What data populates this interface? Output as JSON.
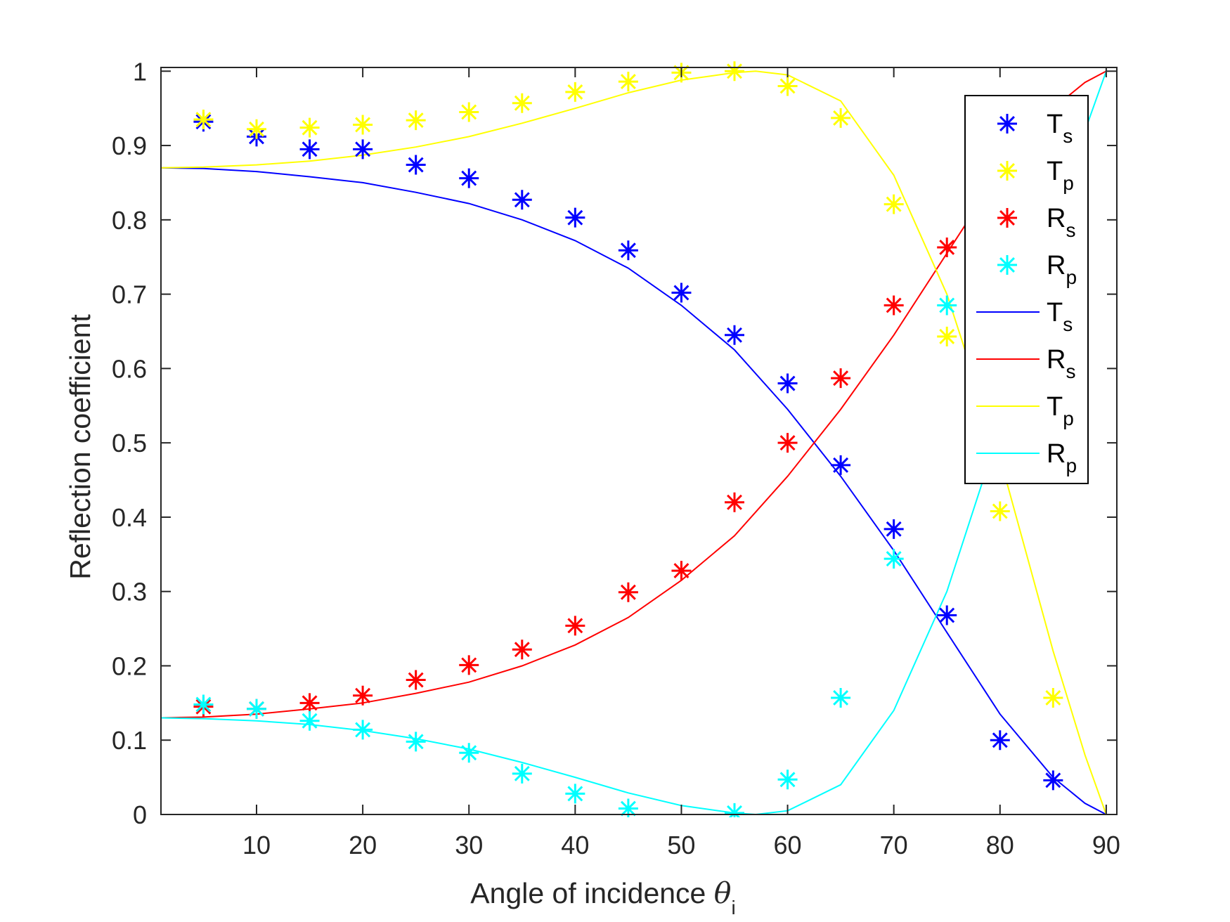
{
  "chart_data": {
    "type": "scatter",
    "xlabel": {
      "text": "Angle of incidence ",
      "symbol": "θ",
      "sub": "i"
    },
    "ylabel": "Reflection coefficient",
    "xlim": [
      1,
      91
    ],
    "ylim": [
      0,
      1.005
    ],
    "xticks": [
      10,
      20,
      30,
      40,
      50,
      60,
      70,
      80,
      90
    ],
    "yticks": [
      0,
      0.1,
      0.2,
      0.3,
      0.4,
      0.5,
      0.6,
      0.7,
      0.8,
      0.9,
      1
    ],
    "grid": false,
    "legend_position": "top-right",
    "colors": {
      "Ts": "#0000ff",
      "Tp": "#ffff00",
      "Rs": "#ff0000",
      "Rp": "#00ffff",
      "axes": "#262626"
    },
    "markers": [
      {
        "key": "Ts",
        "base": "T",
        "sub": "s",
        "x": [
          5,
          10,
          15,
          20,
          25,
          30,
          35,
          40,
          45,
          50,
          55,
          60,
          65,
          70,
          75,
          80,
          85
        ],
        "y": [
          0.932,
          0.912,
          0.895,
          0.895,
          0.874,
          0.856,
          0.827,
          0.803,
          0.759,
          0.702,
          0.645,
          0.58,
          0.47,
          0.384,
          0.268,
          0.1,
          0.046
        ]
      },
      {
        "key": "Tp",
        "base": "T",
        "sub": "p",
        "x": [
          5,
          10,
          15,
          20,
          25,
          30,
          35,
          40,
          45,
          50,
          55,
          60,
          65,
          70,
          75,
          80,
          85
        ],
        "y": [
          0.935,
          0.922,
          0.924,
          0.928,
          0.934,
          0.945,
          0.957,
          0.972,
          0.986,
          0.998,
          1.0,
          0.98,
          0.937,
          0.821,
          0.643,
          0.408,
          0.157
        ]
      },
      {
        "key": "Rs",
        "base": "R",
        "sub": "s",
        "x": [
          5,
          10,
          15,
          20,
          25,
          30,
          35,
          40,
          45,
          50,
          55,
          60,
          65,
          70,
          75
        ],
        "y": [
          0.145,
          0.142,
          0.15,
          0.16,
          0.181,
          0.201,
          0.222,
          0.254,
          0.299,
          0.328,
          0.42,
          0.5,
          0.587,
          0.685,
          0.763
        ]
      },
      {
        "key": "Rp",
        "base": "R",
        "sub": "p",
        "x": [
          5,
          10,
          15,
          20,
          25,
          30,
          35,
          40,
          45,
          55,
          60,
          65,
          70,
          75
        ],
        "y": [
          0.148,
          0.142,
          0.126,
          0.114,
          0.098,
          0.083,
          0.055,
          0.028,
          0.008,
          0.002,
          0.047,
          0.157,
          0.344,
          0.685
        ]
      }
    ],
    "lines": [
      {
        "key": "Ts",
        "base": "T",
        "sub": "s",
        "x": [
          1,
          5,
          10,
          15,
          20,
          25,
          30,
          35,
          40,
          45,
          50,
          55,
          60,
          65,
          70,
          75,
          80,
          85,
          88,
          90
        ],
        "y": [
          0.87,
          0.869,
          0.865,
          0.858,
          0.85,
          0.837,
          0.822,
          0.8,
          0.772,
          0.735,
          0.685,
          0.625,
          0.545,
          0.455,
          0.355,
          0.245,
          0.135,
          0.05,
          0.015,
          0.0
        ]
      },
      {
        "key": "Rs",
        "base": "R",
        "sub": "s",
        "x": [
          1,
          5,
          10,
          15,
          20,
          25,
          30,
          35,
          40,
          45,
          50,
          55,
          60,
          65,
          70,
          75,
          80,
          85,
          88,
          90
        ],
        "y": [
          0.13,
          0.131,
          0.135,
          0.142,
          0.15,
          0.163,
          0.178,
          0.2,
          0.228,
          0.265,
          0.315,
          0.375,
          0.455,
          0.545,
          0.645,
          0.755,
          0.865,
          0.95,
          0.985,
          1.0
        ]
      },
      {
        "key": "Tp",
        "base": "T",
        "sub": "p",
        "x": [
          1,
          5,
          10,
          15,
          20,
          25,
          30,
          35,
          40,
          45,
          50,
          55,
          57,
          60,
          65,
          70,
          75,
          80,
          85,
          88,
          90
        ],
        "y": [
          0.87,
          0.871,
          0.874,
          0.879,
          0.887,
          0.898,
          0.912,
          0.93,
          0.95,
          0.971,
          0.988,
          0.998,
          1.0,
          0.995,
          0.96,
          0.86,
          0.7,
          0.48,
          0.22,
          0.08,
          0.0
        ]
      },
      {
        "key": "Rp",
        "base": "R",
        "sub": "p",
        "x": [
          1,
          5,
          10,
          15,
          20,
          25,
          30,
          35,
          40,
          45,
          50,
          55,
          57,
          60,
          65,
          70,
          75,
          80,
          85,
          88,
          90
        ],
        "y": [
          0.13,
          0.129,
          0.126,
          0.121,
          0.113,
          0.102,
          0.088,
          0.07,
          0.05,
          0.029,
          0.012,
          0.002,
          0.0,
          0.005,
          0.04,
          0.14,
          0.3,
          0.52,
          0.78,
          0.92,
          1.0
        ]
      }
    ],
    "legend_order": [
      {
        "type": "marker",
        "key": "Ts",
        "base": "T",
        "sub": "s"
      },
      {
        "type": "marker",
        "key": "Tp",
        "base": "T",
        "sub": "p"
      },
      {
        "type": "marker",
        "key": "Rs",
        "base": "R",
        "sub": "s"
      },
      {
        "type": "marker",
        "key": "Rp",
        "base": "R",
        "sub": "p"
      },
      {
        "type": "line",
        "key": "Ts",
        "base": "T",
        "sub": "s"
      },
      {
        "type": "line",
        "key": "Rs",
        "base": "R",
        "sub": "s"
      },
      {
        "type": "line",
        "key": "Tp",
        "base": "T",
        "sub": "p"
      },
      {
        "type": "line",
        "key": "Rp",
        "base": "R",
        "sub": "p"
      }
    ]
  }
}
